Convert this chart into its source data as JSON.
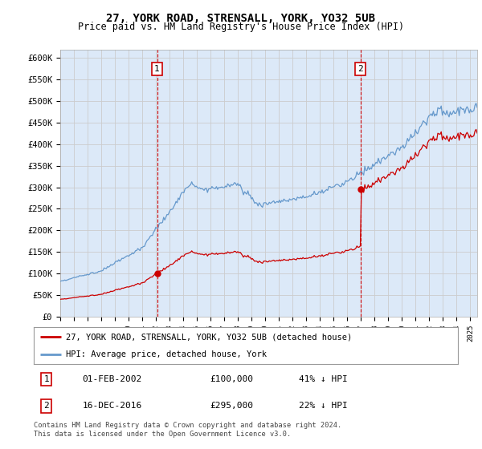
{
  "title": "27, YORK ROAD, STRENSALL, YORK, YO32 5UB",
  "subtitle": "Price paid vs. HM Land Registry's House Price Index (HPI)",
  "ylim": [
    0,
    620000
  ],
  "yticks": [
    0,
    50000,
    100000,
    150000,
    200000,
    250000,
    300000,
    350000,
    400000,
    450000,
    500000,
    550000,
    600000
  ],
  "ytick_labels": [
    "£0",
    "£50K",
    "£100K",
    "£150K",
    "£200K",
    "£250K",
    "£300K",
    "£350K",
    "£400K",
    "£450K",
    "£500K",
    "£550K",
    "£600K"
  ],
  "background_color": "#dce9f8",
  "grid_color": "#cccccc",
  "red_line_color": "#cc0000",
  "blue_line_color": "#6699cc",
  "transaction1_date_x": 2002.083,
  "transaction1_price": 100000,
  "transaction2_date_x": 2016.958,
  "transaction2_price": 295000,
  "legend_label_red": "27, YORK ROAD, STRENSALL, YORK, YO32 5UB (detached house)",
  "legend_label_blue": "HPI: Average price, detached house, York",
  "table_row1": [
    "1",
    "01-FEB-2002",
    "£100,000",
    "41% ↓ HPI"
  ],
  "table_row2": [
    "2",
    "16-DEC-2016",
    "£295,000",
    "22% ↓ HPI"
  ],
  "footer": "Contains HM Land Registry data © Crown copyright and database right 2024.\nThis data is licensed under the Open Government Licence v3.0.",
  "xmin": 1995,
  "xmax": 2025.5
}
